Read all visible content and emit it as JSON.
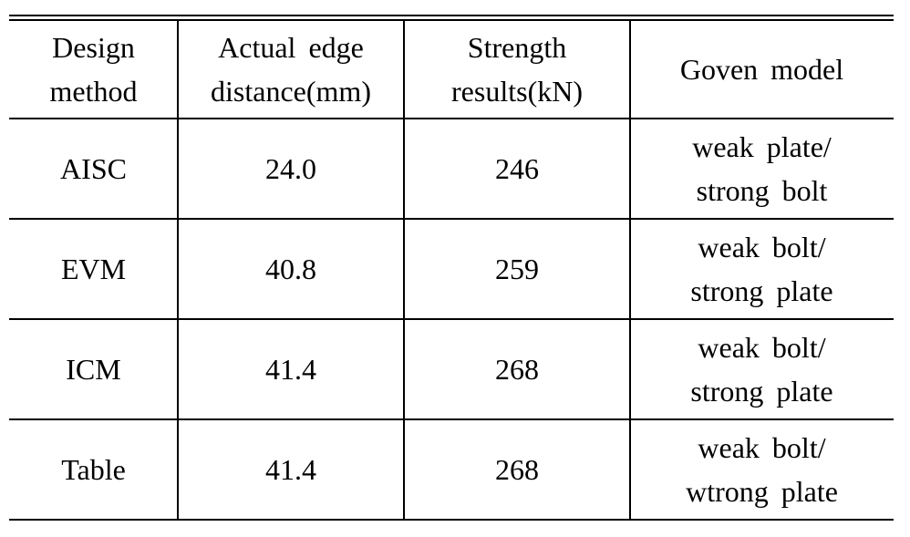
{
  "table": {
    "header": [
      [
        "Design",
        "method"
      ],
      [
        "Actual edge",
        "distance(mm)"
      ],
      [
        "Strength",
        "results(kN)"
      ],
      [
        "Goven model"
      ]
    ],
    "rows": [
      [
        [
          "AISC"
        ],
        [
          "24.0"
        ],
        [
          "246"
        ],
        [
          "weak plate/",
          "strong bolt"
        ]
      ],
      [
        [
          "EVM"
        ],
        [
          "40.8"
        ],
        [
          "259"
        ],
        [
          "weak bolt/",
          "strong plate"
        ]
      ],
      [
        [
          "ICM"
        ],
        [
          "41.4"
        ],
        [
          "268"
        ],
        [
          "weak bolt/",
          "strong plate"
        ]
      ],
      [
        [
          "Table"
        ],
        [
          "41.4"
        ],
        [
          "268"
        ],
        [
          "weak bolt/",
          "wtrong plate"
        ]
      ]
    ]
  }
}
